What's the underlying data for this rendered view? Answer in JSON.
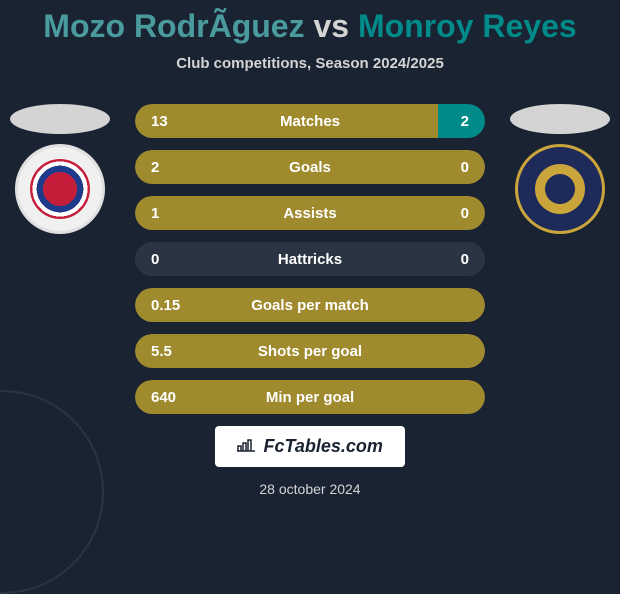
{
  "header": {
    "player1": "Mozo RodrÃ­guez",
    "vs": "vs",
    "player2": "Monroy Reyes",
    "subtitle": "Club competitions, Season 2024/2025"
  },
  "stats": [
    {
      "label": "Matches",
      "left_val": "13",
      "right_val": "2",
      "left_pct": 86.7,
      "right_pct": 13.3,
      "left_color": "#a08a2e",
      "right_color": "#008b8b"
    },
    {
      "label": "Goals",
      "left_val": "2",
      "right_val": "0",
      "left_pct": 100,
      "right_pct": 0,
      "left_color": "#a08a2e",
      "right_color": "#008b8b"
    },
    {
      "label": "Assists",
      "left_val": "1",
      "right_val": "0",
      "left_pct": 100,
      "right_pct": 0,
      "left_color": "#a08a2e",
      "right_color": "#008b8b"
    },
    {
      "label": "Hattricks",
      "left_val": "0",
      "right_val": "0",
      "left_pct": 0,
      "right_pct": 0,
      "left_color": "#a08a2e",
      "right_color": "#008b8b",
      "empty": true
    },
    {
      "label": "Goals per match",
      "left_val": "0.15",
      "right_val": "",
      "left_pct": 100,
      "right_pct": 0,
      "left_color": "#a08a2e",
      "right_color": "#008b8b"
    },
    {
      "label": "Shots per goal",
      "left_val": "5.5",
      "right_val": "",
      "left_pct": 100,
      "right_pct": 0,
      "left_color": "#a08a2e",
      "right_color": "#008b8b"
    },
    {
      "label": "Min per goal",
      "left_val": "640",
      "right_val": "",
      "left_pct": 100,
      "right_pct": 0,
      "left_color": "#a08a2e",
      "right_color": "#008b8b"
    }
  ],
  "footer": {
    "brand": "FcTables.com",
    "date": "28 october 2024"
  },
  "colors": {
    "background": "#1a2332",
    "player1_color": "#4a9b9e",
    "player2_color": "#008b8b",
    "bar_empty": "#2a3442",
    "text_light": "#d4d4d4"
  }
}
